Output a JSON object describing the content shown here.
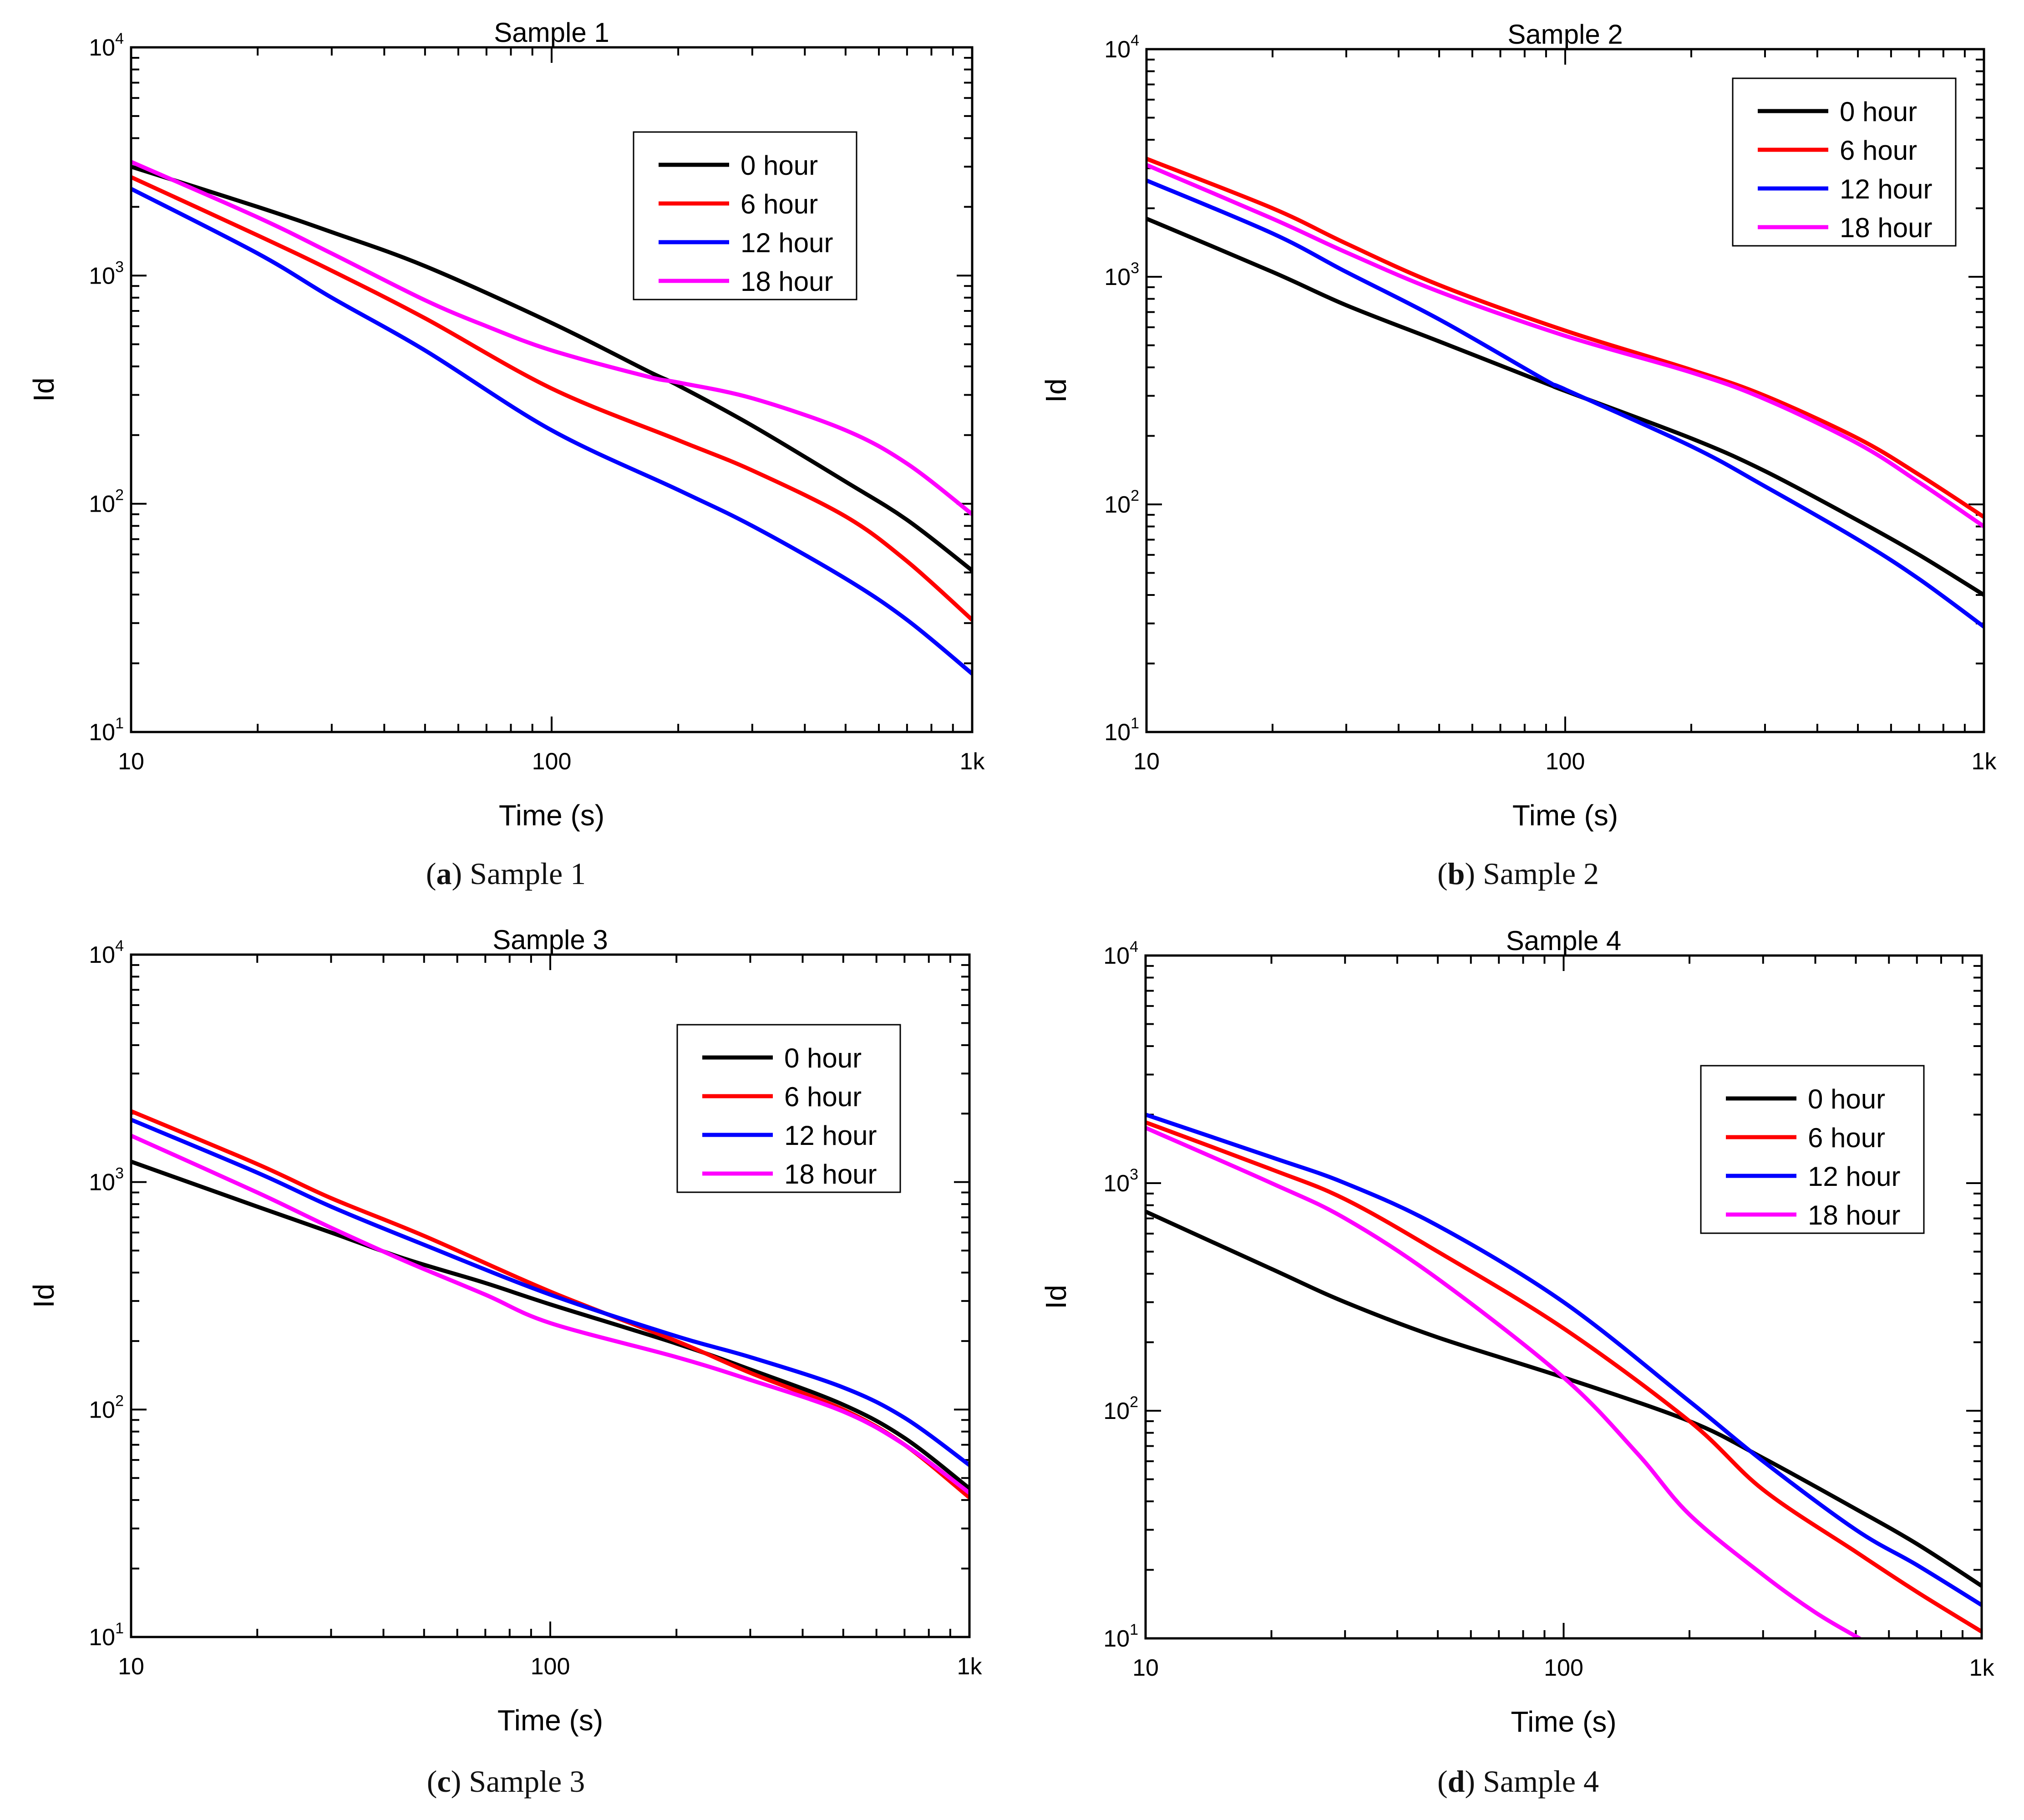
{
  "figure": {
    "panels": [
      {
        "letter": "a",
        "caption": "Sample 1"
      },
      {
        "letter": "b",
        "caption": "Sample 2"
      },
      {
        "letter": "c",
        "caption": "Sample 3"
      },
      {
        "letter": "d",
        "caption": "Sample 4"
      }
    ]
  },
  "chart_data": [
    {
      "type": "line",
      "title": "Sample 1",
      "xlabel": "Time (s)",
      "ylabel": "Id",
      "xscale": "log",
      "yscale": "log",
      "xlim": [
        10,
        1000
      ],
      "ylim": [
        10,
        10000
      ],
      "xticks": [
        {
          "value": 10,
          "label": "10"
        },
        {
          "value": 100,
          "label": "100"
        },
        {
          "value": 1000,
          "label": "1k"
        }
      ],
      "yticks": [
        {
          "value": 10,
          "base": "10",
          "exp": "1"
        },
        {
          "value": 100,
          "base": "10",
          "exp": "2"
        },
        {
          "value": 1000,
          "base": "10",
          "exp": "3"
        },
        {
          "value": 10000,
          "base": "10",
          "exp": "4"
        }
      ],
      "legend_position": "upper-center",
      "series": [
        {
          "name": "0 hour",
          "color": "#000000",
          "x": [
            10,
            20,
            30,
            50,
            100,
            170,
            200,
            300,
            500,
            700,
            1000
          ],
          "y": [
            3000,
            2000,
            1550,
            1100,
            620,
            380,
            330,
            220,
            125,
            85,
            51
          ]
        },
        {
          "name": "6 hour",
          "color": "#ff0000",
          "x": [
            10,
            20,
            30,
            50,
            100,
            200,
            300,
            500,
            700,
            1000
          ],
          "y": [
            2700,
            1500,
            1050,
            650,
            320,
            190,
            140,
            88,
            56,
            31
          ]
        },
        {
          "name": "12 hour",
          "color": "#0000ff",
          "x": [
            10,
            20,
            30,
            50,
            100,
            200,
            300,
            500,
            700,
            1000
          ],
          "y": [
            2400,
            1250,
            800,
            470,
            210,
            115,
            80,
            47,
            31,
            18
          ]
        },
        {
          "name": "18 hour",
          "color": "#ff00ff",
          "x": [
            10,
            20,
            30,
            50,
            70,
            100,
            170,
            200,
            300,
            500,
            700,
            1000
          ],
          "y": [
            3150,
            1800,
            1250,
            780,
            600,
            470,
            360,
            340,
            290,
            210,
            150,
            90
          ]
        }
      ]
    },
    {
      "type": "line",
      "title": "Sample 2",
      "xlabel": "Time (s)",
      "ylabel": "Id",
      "xscale": "log",
      "yscale": "log",
      "xlim": [
        10,
        1000
      ],
      "ylim": [
        10,
        10000
      ],
      "xticks": [
        {
          "value": 10,
          "label": "10"
        },
        {
          "value": 100,
          "label": "100"
        },
        {
          "value": 1000,
          "label": "1k"
        }
      ],
      "yticks": [
        {
          "value": 10,
          "base": "10",
          "exp": "1"
        },
        {
          "value": 100,
          "base": "10",
          "exp": "2"
        },
        {
          "value": 1000,
          "base": "10",
          "exp": "3"
        },
        {
          "value": 10000,
          "base": "10",
          "exp": "4"
        }
      ],
      "legend_position": "top-right",
      "series": [
        {
          "name": "0 hour",
          "color": "#000000",
          "x": [
            10,
            20,
            30,
            50,
            90,
            100,
            200,
            300,
            500,
            700,
            1000
          ],
          "y": [
            1800,
            1050,
            750,
            520,
            340,
            315,
            195,
            140,
            85,
            60,
            40
          ]
        },
        {
          "name": "6 hour",
          "color": "#ff0000",
          "x": [
            10,
            20,
            30,
            50,
            100,
            200,
            300,
            500,
            700,
            1000
          ],
          "y": [
            3300,
            2000,
            1400,
            920,
            580,
            390,
            300,
            195,
            135,
            88
          ]
        },
        {
          "name": "12 hour",
          "color": "#0000ff",
          "x": [
            10,
            20,
            30,
            50,
            90,
            100,
            200,
            300,
            500,
            700,
            1000
          ],
          "y": [
            2650,
            1550,
            1050,
            650,
            350,
            320,
            180,
            120,
            70,
            47,
            29
          ]
        },
        {
          "name": "18 hour",
          "color": "#ff00ff",
          "x": [
            10,
            20,
            30,
            50,
            100,
            200,
            300,
            500,
            700,
            1000
          ],
          "y": [
            3100,
            1800,
            1280,
            860,
            550,
            380,
            290,
            185,
            125,
            80
          ]
        }
      ]
    },
    {
      "type": "line",
      "title": "Sample 3",
      "xlabel": "Time (s)",
      "ylabel": "Id",
      "xscale": "log",
      "yscale": "log",
      "xlim": [
        10,
        1000
      ],
      "ylim": [
        10,
        10000
      ],
      "xticks": [
        {
          "value": 10,
          "label": "10"
        },
        {
          "value": 100,
          "label": "100"
        },
        {
          "value": 1000,
          "label": "1k"
        }
      ],
      "yticks": [
        {
          "value": 10,
          "base": "10",
          "exp": "1"
        },
        {
          "value": 100,
          "base": "10",
          "exp": "2"
        },
        {
          "value": 1000,
          "base": "10",
          "exp": "3"
        },
        {
          "value": 10000,
          "base": "10",
          "exp": "4"
        }
      ],
      "legend_position": "top-right",
      "series": [
        {
          "name": "0 hour",
          "color": "#000000",
          "x": [
            10,
            20,
            30,
            45,
            70,
            100,
            200,
            300,
            500,
            700,
            1000
          ],
          "y": [
            1230,
            780,
            600,
            460,
            360,
            290,
            195,
            150,
            105,
            75,
            45
          ]
        },
        {
          "name": "6 hour",
          "color": "#ff0000",
          "x": [
            10,
            20,
            30,
            50,
            100,
            200,
            300,
            500,
            700,
            1000
          ],
          "y": [
            2050,
            1200,
            850,
            580,
            330,
            200,
            145,
            100,
            70,
            41
          ]
        },
        {
          "name": "12 hour",
          "color": "#0000ff",
          "x": [
            10,
            20,
            30,
            50,
            100,
            200,
            300,
            500,
            700,
            1000
          ],
          "y": [
            1880,
            1100,
            780,
            530,
            320,
            210,
            170,
            125,
            92,
            57
          ]
        },
        {
          "name": "18 hour",
          "color": "#ff00ff",
          "x": [
            10,
            20,
            30,
            45,
            70,
            100,
            200,
            300,
            500,
            700,
            1000
          ],
          "y": [
            1600,
            900,
            630,
            450,
            320,
            240,
            170,
            135,
            98,
            70,
            43
          ]
        }
      ]
    },
    {
      "type": "line",
      "title": "Sample 4",
      "xlabel": "Time (s)",
      "ylabel": "Id",
      "xscale": "log",
      "yscale": "log",
      "xlim": [
        10,
        1000
      ],
      "ylim": [
        10,
        10000
      ],
      "xticks": [
        {
          "value": 10,
          "label": "10"
        },
        {
          "value": 100,
          "label": "100"
        },
        {
          "value": 1000,
          "label": "1k"
        }
      ],
      "yticks": [
        {
          "value": 10,
          "base": "10",
          "exp": "1"
        },
        {
          "value": 100,
          "base": "10",
          "exp": "2"
        },
        {
          "value": 1000,
          "base": "10",
          "exp": "3"
        },
        {
          "value": 10000,
          "base": "10",
          "exp": "4"
        }
      ],
      "legend_position": "top-right",
      "series": [
        {
          "name": "0 hour",
          "color": "#000000",
          "x": [
            10,
            20,
            30,
            50,
            100,
            200,
            300,
            500,
            700,
            1000
          ],
          "y": [
            750,
            420,
            300,
            210,
            140,
            90,
            62,
            37,
            26,
            17
          ]
        },
        {
          "name": "6 hour",
          "color": "#ff0000",
          "x": [
            10,
            20,
            30,
            50,
            100,
            200,
            300,
            500,
            700,
            1000
          ],
          "y": [
            1850,
            1150,
            850,
            500,
            230,
            90,
            45,
            24,
            16,
            10.7
          ]
        },
        {
          "name": "12 hour",
          "color": "#0000ff",
          "x": [
            10,
            20,
            30,
            50,
            100,
            200,
            300,
            500,
            700,
            1000
          ],
          "y": [
            2000,
            1300,
            1000,
            650,
            300,
            110,
            60,
            30,
            21,
            14
          ]
        },
        {
          "name": "18 hour",
          "color": "#ff00ff",
          "x": [
            10,
            20,
            30,
            50,
            100,
            150,
            200,
            300,
            400,
            510
          ],
          "y": [
            1750,
            1000,
            700,
            380,
            140,
            65,
            35,
            19,
            13,
            10
          ]
        }
      ]
    }
  ]
}
